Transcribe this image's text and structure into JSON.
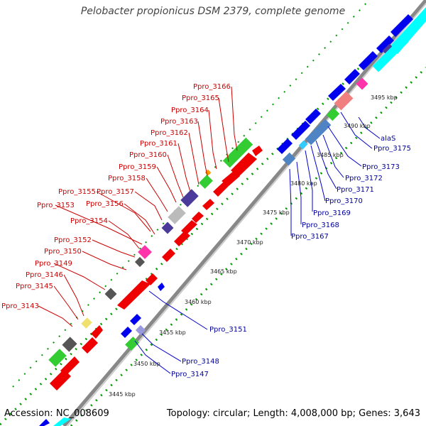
{
  "title": "Pelobacter propionicus DSM 2379, complete genome",
  "footer": {
    "accession": "Accession: NC_008609",
    "summary": "Topology: circular; Length: 4,008,000 bp; Genes: 3,643"
  },
  "kbp_labels": [
    "3445 kbp",
    "3450 kbp",
    "3455 kbp",
    "3460 kbp",
    "3465 kbp",
    "3470 kbp",
    "3475 kbp",
    "3480 kbp",
    "3485 kbp",
    "3490 kbp",
    "3495 kbp"
  ],
  "gene_labels_top": [
    "Ppro_3166",
    "Ppro_3165",
    "Ppro_3164",
    "Ppro_3163",
    "Ppro_3162",
    "Ppro_3161",
    "Ppro_3160",
    "Ppro_3159",
    "Ppro_3158",
    "Ppro_3157",
    "Ppro_3155",
    "Ppro_3156",
    "Ppro_3153",
    "Ppro_3154",
    "Ppro_3152",
    "Ppro_3150",
    "Ppro_3149",
    "Ppro_3146",
    "Ppro_3145",
    "Ppro_3143"
  ],
  "gene_labels_bottom": [
    "alaS",
    "Ppro_3175",
    "Ppro_3173",
    "Ppro_3172",
    "Ppro_3171",
    "Ppro_3170",
    "Ppro_3169",
    "Ppro_3168",
    "Ppro_3167",
    "Ppro_3151",
    "Ppro_3148",
    "Ppro_3147"
  ],
  "colors": {
    "forward_cds": "#ff0000",
    "reverse_cds": "#0000ee",
    "backbone": "#999999",
    "gc_ticks": "#009900",
    "cyan_track": "#00ffff",
    "label_red": "#cc0000",
    "label_blue": "#000099"
  }
}
